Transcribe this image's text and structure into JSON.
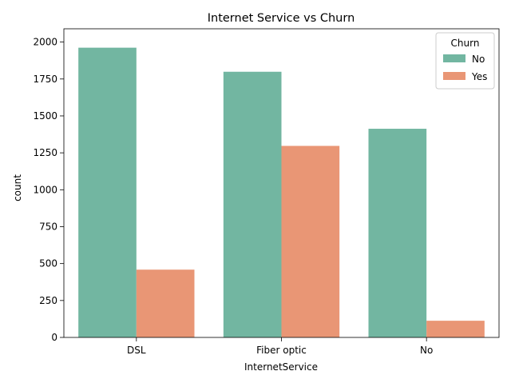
{
  "chart_data": {
    "type": "bar",
    "title": "Internet Service vs Churn",
    "xlabel": "InternetService",
    "ylabel": "count",
    "categories": [
      "DSL",
      "Fiber optic",
      "No"
    ],
    "series": [
      {
        "name": "No",
        "values": [
          1962,
          1799,
          1413
        ],
        "color": "#72b6a1"
      },
      {
        "name": "Yes",
        "values": [
          459,
          1297,
          113
        ],
        "color": "#e99675"
      }
    ],
    "ylim": [
      0,
      2090
    ],
    "yticks": [
      0,
      250,
      500,
      750,
      1000,
      1250,
      1500,
      1750,
      2000
    ],
    "legend": {
      "title": "Churn",
      "position": "top-right"
    },
    "grid": false
  }
}
